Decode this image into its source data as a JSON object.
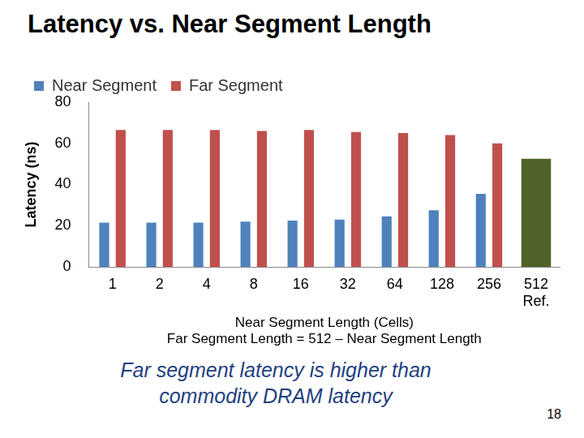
{
  "chart_data": {
    "type": "bar",
    "title": "Latency vs. Near Segment Length",
    "y_label": "Latency (ns)",
    "x_label": [
      "Near Segment Length (Cells)",
      "Far Segment Length = 512 – Near Segment Length"
    ],
    "categories": [
      "1",
      "2",
      "4",
      "8",
      "16",
      "32",
      "64",
      "128",
      "256",
      "512"
    ],
    "series": [
      {
        "name": "Near Segment",
        "color": "#4f81bd",
        "values": [
          21.5,
          21.5,
          21.5,
          22,
          22.5,
          23,
          24.5,
          27.5,
          35.5,
          null
        ]
      },
      {
        "name": "Far Segment",
        "color": "#c0504d",
        "values": [
          66.5,
          66.5,
          66.5,
          66,
          66.5,
          65.5,
          65,
          64,
          60,
          null
        ]
      }
    ],
    "reference": {
      "category": "512",
      "label": "Ref.",
      "value": 52.5,
      "color": "#4f6228"
    },
    "ylim": [
      0,
      80
    ],
    "yticks": [
      0,
      20,
      40,
      60,
      80
    ],
    "grid": false,
    "legend": "top",
    "annotation": "Far segment latency is higher than commodity DRAM latency"
  },
  "slide": {
    "page_number": 18
  }
}
